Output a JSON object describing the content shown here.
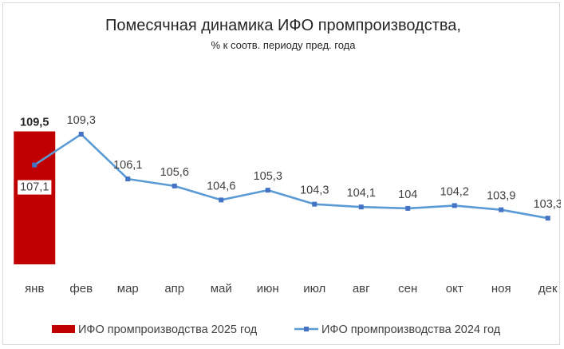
{
  "chart_data": {
    "type": "bar+line",
    "title": "Помесячная динамика ИФО промпроизводства,",
    "subtitle": "% к соотв. периоду пред. года",
    "categories": [
      "янв",
      "фев",
      "мар",
      "апр",
      "май",
      "июн",
      "июл",
      "авг",
      "сен",
      "окт",
      "ноя",
      "дек"
    ],
    "series": [
      {
        "name": "ИФО промпроизводства 2025 год",
        "kind": "bar",
        "color": "#c00000",
        "values": [
          109.5,
          null,
          null,
          null,
          null,
          null,
          null,
          null,
          null,
          null,
          null,
          null
        ],
        "labels": [
          "109,5"
        ]
      },
      {
        "name": "ИФО промпроизводства 2024 год",
        "kind": "line",
        "color": "#5b9bd5",
        "marker_color": "#4472c4",
        "values": [
          107.1,
          109.3,
          106.1,
          105.6,
          104.6,
          105.3,
          104.3,
          104.1,
          104.0,
          104.2,
          103.9,
          103.3
        ],
        "labels": [
          "107,1",
          "109,3",
          "106,1",
          "105,6",
          "104,6",
          "105,3",
          "104,3",
          "104,1",
          "104",
          "104,2",
          "103,9",
          "103,3"
        ]
      }
    ],
    "ylim": [
      100.0,
      110.5
    ],
    "grid": false,
    "legend_position": "bottom"
  }
}
